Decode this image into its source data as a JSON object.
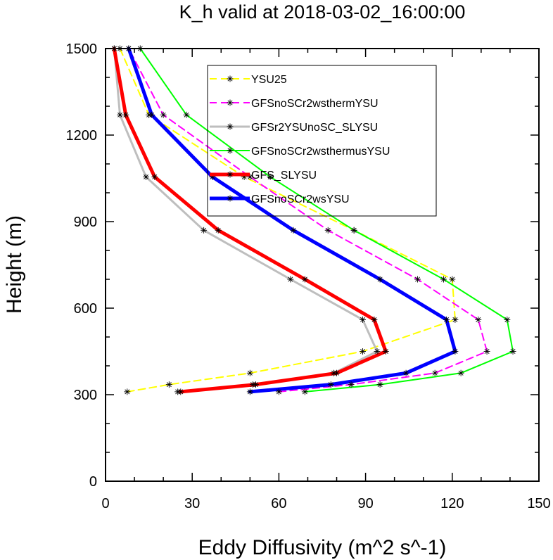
{
  "chart_data": {
    "type": "line",
    "title": "K_h valid at 2018-03-02_16:00:00",
    "xlabel": "Eddy Diffusivity (m^2 s^-1)",
    "ylabel": "Height (m)",
    "xlim": [
      0,
      150
    ],
    "ylim": [
      0,
      1500
    ],
    "xticks": [
      0,
      30,
      60,
      90,
      120,
      150
    ],
    "yticks": [
      0,
      300,
      600,
      900,
      1200,
      1500
    ],
    "xtick_labels": [
      "0",
      "30",
      "60",
      "90",
      "120",
      "150"
    ],
    "ytick_labels": [
      "0",
      "300",
      "600",
      "900",
      "1200",
      "1500"
    ],
    "legend_position": "upper-center",
    "series": [
      {
        "name": "YSU25",
        "color": "#ffff00",
        "dash": true,
        "width": 2,
        "points": [
          [
            7.5,
            310
          ],
          [
            22,
            335
          ],
          [
            50,
            375
          ],
          [
            89,
            450
          ],
          [
            121,
            560
          ],
          [
            120,
            700
          ],
          [
            86,
            870
          ],
          [
            48,
            1055
          ],
          [
            15,
            1270
          ],
          [
            5,
            1500
          ]
        ]
      },
      {
        "name": "GFSnoSCr2wsthermYSU",
        "color": "#ff00ff",
        "dash": true,
        "width": 2,
        "points": [
          [
            60,
            310
          ],
          [
            85,
            335
          ],
          [
            114,
            375
          ],
          [
            132,
            450
          ],
          [
            129,
            560
          ],
          [
            108,
            700
          ],
          [
            77,
            870
          ],
          [
            50,
            1055
          ],
          [
            20,
            1270
          ],
          [
            8,
            1500
          ]
        ]
      },
      {
        "name": "GFSr2YSUnoSC_SLYSU",
        "color": "#bebebe",
        "dash": false,
        "width": 3,
        "points": [
          [
            25,
            310
          ],
          [
            51,
            335
          ],
          [
            79,
            375
          ],
          [
            94,
            450
          ],
          [
            89,
            560
          ],
          [
            64,
            700
          ],
          [
            34,
            870
          ],
          [
            14,
            1055
          ],
          [
            5,
            1270
          ],
          [
            3,
            1500
          ]
        ]
      },
      {
        "name": "GFSnoSCr2wsthermusYSU",
        "color": "#00ff00",
        "dash": false,
        "width": 2,
        "points": [
          [
            69,
            310
          ],
          [
            95,
            335
          ],
          [
            123,
            375
          ],
          [
            141,
            450
          ],
          [
            139,
            560
          ],
          [
            117,
            700
          ],
          [
            86,
            870
          ],
          [
            57,
            1055
          ],
          [
            28,
            1270
          ],
          [
            12,
            1500
          ]
        ]
      },
      {
        "name": "GFS_SLYSU",
        "color": "#ff0000",
        "dash": false,
        "width": 5,
        "points": [
          [
            26,
            310
          ],
          [
            52,
            335
          ],
          [
            80,
            375
          ],
          [
            97,
            450
          ],
          [
            93,
            560
          ],
          [
            69,
            700
          ],
          [
            39,
            870
          ],
          [
            17,
            1055
          ],
          [
            7,
            1270
          ],
          [
            3,
            1500
          ]
        ]
      },
      {
        "name": "GFSnoSCr2wsYSU",
        "color": "#0000ff",
        "dash": false,
        "width": 5,
        "points": [
          [
            50,
            310
          ],
          [
            78,
            335
          ],
          [
            104,
            375
          ],
          [
            121,
            450
          ],
          [
            118,
            560
          ],
          [
            95,
            700
          ],
          [
            65,
            870
          ],
          [
            37,
            1055
          ],
          [
            16,
            1270
          ],
          [
            8,
            1500
          ]
        ]
      }
    ]
  }
}
